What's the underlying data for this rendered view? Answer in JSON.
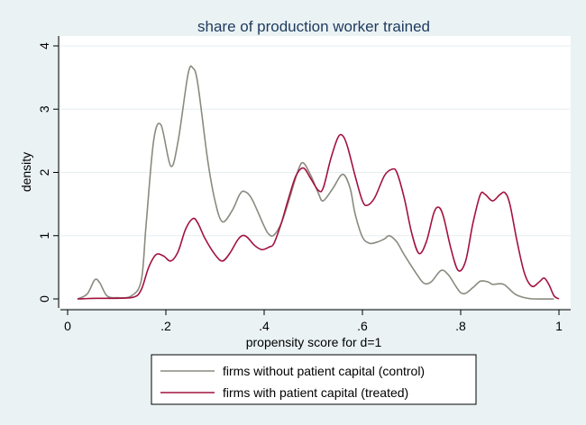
{
  "chart_data": {
    "type": "line",
    "title": "share of production worker trained",
    "xlabel": "propensity score for d=1",
    "ylabel": "density",
    "xlim": [
      0,
      1
    ],
    "ylim": [
      0,
      4
    ],
    "xticks": [
      {
        "v": 0,
        "label": "0"
      },
      {
        "v": 0.2,
        "label": ".2"
      },
      {
        "v": 0.4,
        "label": ".4"
      },
      {
        "v": 0.6,
        "label": ".6"
      },
      {
        "v": 0.8,
        "label": ".8"
      },
      {
        "v": 1,
        "label": "1"
      }
    ],
    "yticks": [
      {
        "v": 0,
        "label": "0"
      },
      {
        "v": 1,
        "label": "1"
      },
      {
        "v": 2,
        "label": "2"
      },
      {
        "v": 3,
        "label": "3"
      },
      {
        "v": 4,
        "label": "4"
      }
    ],
    "grid": "horizontal",
    "legend": "bottom",
    "series": [
      {
        "name": "firms without patient capital (control)",
        "color": "#8a8a80",
        "points": [
          [
            0.02,
            0.0
          ],
          [
            0.04,
            0.08
          ],
          [
            0.055,
            0.3
          ],
          [
            0.065,
            0.26
          ],
          [
            0.08,
            0.05
          ],
          [
            0.1,
            0.02
          ],
          [
            0.13,
            0.05
          ],
          [
            0.15,
            0.3
          ],
          [
            0.16,
            1.2
          ],
          [
            0.175,
            2.5
          ],
          [
            0.19,
            2.75
          ],
          [
            0.21,
            2.1
          ],
          [
            0.225,
            2.5
          ],
          [
            0.245,
            3.55
          ],
          [
            0.255,
            3.65
          ],
          [
            0.265,
            3.4
          ],
          [
            0.285,
            2.2
          ],
          [
            0.3,
            1.55
          ],
          [
            0.315,
            1.22
          ],
          [
            0.335,
            1.4
          ],
          [
            0.35,
            1.65
          ],
          [
            0.36,
            1.7
          ],
          [
            0.375,
            1.58
          ],
          [
            0.4,
            1.15
          ],
          [
            0.41,
            1.02
          ],
          [
            0.42,
            1.01
          ],
          [
            0.435,
            1.2
          ],
          [
            0.45,
            1.55
          ],
          [
            0.47,
            2.05
          ],
          [
            0.48,
            2.15
          ],
          [
            0.495,
            1.95
          ],
          [
            0.51,
            1.68
          ],
          [
            0.52,
            1.55
          ],
          [
            0.54,
            1.75
          ],
          [
            0.56,
            1.97
          ],
          [
            0.575,
            1.75
          ],
          [
            0.585,
            1.35
          ],
          [
            0.6,
            0.98
          ],
          [
            0.615,
            0.88
          ],
          [
            0.63,
            0.9
          ],
          [
            0.645,
            0.95
          ],
          [
            0.655,
            1.0
          ],
          [
            0.67,
            0.9
          ],
          [
            0.685,
            0.7
          ],
          [
            0.71,
            0.4
          ],
          [
            0.725,
            0.25
          ],
          [
            0.74,
            0.27
          ],
          [
            0.76,
            0.45
          ],
          [
            0.775,
            0.38
          ],
          [
            0.79,
            0.2
          ],
          [
            0.8,
            0.1
          ],
          [
            0.81,
            0.09
          ],
          [
            0.825,
            0.18
          ],
          [
            0.84,
            0.28
          ],
          [
            0.855,
            0.27
          ],
          [
            0.865,
            0.23
          ],
          [
            0.88,
            0.24
          ],
          [
            0.89,
            0.22
          ],
          [
            0.91,
            0.08
          ],
          [
            0.93,
            0.02
          ],
          [
            0.95,
            0.0
          ],
          [
            0.99,
            0.0
          ]
        ]
      },
      {
        "name": "firms with patient capital (treated)",
        "color": "#a3123f",
        "points": [
          [
            0.02,
            0.0
          ],
          [
            0.06,
            0.01
          ],
          [
            0.1,
            0.01
          ],
          [
            0.135,
            0.03
          ],
          [
            0.15,
            0.15
          ],
          [
            0.165,
            0.5
          ],
          [
            0.18,
            0.7
          ],
          [
            0.195,
            0.68
          ],
          [
            0.21,
            0.6
          ],
          [
            0.225,
            0.75
          ],
          [
            0.24,
            1.1
          ],
          [
            0.255,
            1.27
          ],
          [
            0.265,
            1.2
          ],
          [
            0.28,
            0.95
          ],
          [
            0.3,
            0.7
          ],
          [
            0.315,
            0.6
          ],
          [
            0.33,
            0.72
          ],
          [
            0.345,
            0.92
          ],
          [
            0.355,
            1.0
          ],
          [
            0.365,
            0.98
          ],
          [
            0.38,
            0.85
          ],
          [
            0.395,
            0.78
          ],
          [
            0.41,
            0.82
          ],
          [
            0.42,
            0.88
          ],
          [
            0.435,
            1.2
          ],
          [
            0.45,
            1.6
          ],
          [
            0.465,
            1.95
          ],
          [
            0.48,
            2.07
          ],
          [
            0.495,
            1.9
          ],
          [
            0.51,
            1.72
          ],
          [
            0.52,
            1.75
          ],
          [
            0.535,
            2.2
          ],
          [
            0.55,
            2.55
          ],
          [
            0.56,
            2.58
          ],
          [
            0.57,
            2.4
          ],
          [
            0.585,
            1.95
          ],
          [
            0.6,
            1.55
          ],
          [
            0.61,
            1.48
          ],
          [
            0.625,
            1.6
          ],
          [
            0.645,
            1.95
          ],
          [
            0.66,
            2.05
          ],
          [
            0.67,
            2.0
          ],
          [
            0.685,
            1.6
          ],
          [
            0.7,
            1.05
          ],
          [
            0.715,
            0.72
          ],
          [
            0.73,
            0.9
          ],
          [
            0.745,
            1.35
          ],
          [
            0.755,
            1.45
          ],
          [
            0.765,
            1.3
          ],
          [
            0.78,
            0.8
          ],
          [
            0.795,
            0.45
          ],
          [
            0.81,
            0.6
          ],
          [
            0.825,
            1.2
          ],
          [
            0.84,
            1.65
          ],
          [
            0.85,
            1.65
          ],
          [
            0.865,
            1.55
          ],
          [
            0.88,
            1.65
          ],
          [
            0.89,
            1.68
          ],
          [
            0.9,
            1.5
          ],
          [
            0.915,
            0.9
          ],
          [
            0.93,
            0.4
          ],
          [
            0.945,
            0.2
          ],
          [
            0.96,
            0.27
          ],
          [
            0.97,
            0.33
          ],
          [
            0.98,
            0.22
          ],
          [
            0.99,
            0.05
          ],
          [
            1.0,
            0.0
          ]
        ]
      }
    ]
  },
  "colors": {
    "page_background": "#eaf2f3",
    "plot_background": "#ffffff",
    "title": "#1e3a5f",
    "gridline": "#e6eef0"
  }
}
